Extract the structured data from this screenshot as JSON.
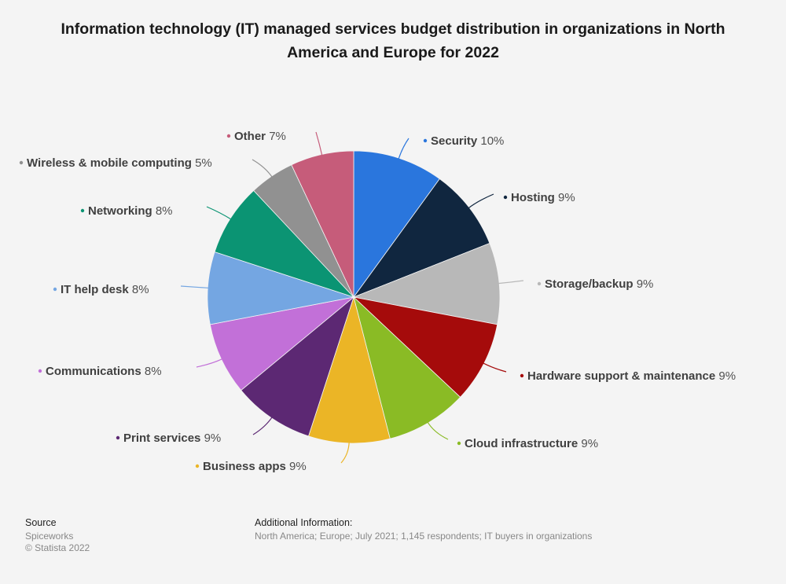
{
  "chart_data": {
    "type": "pie",
    "title": "Information technology (IT) managed services budget distribution in organizations in North America and Europe for 2022",
    "unit": "%",
    "slices": [
      {
        "label": "Security",
        "value": 10,
        "display": "10%",
        "color": "#2a76dd"
      },
      {
        "label": "Hosting",
        "value": 9,
        "display": "9%",
        "color": "#10263f"
      },
      {
        "label": "Storage/backup",
        "value": 9,
        "display": "9%",
        "color": "#b8b8b8"
      },
      {
        "label": "Hardware support & maintenance",
        "value": 9,
        "display": "9%",
        "color": "#a50b0b"
      },
      {
        "label": "Cloud infrastructure",
        "value": 9,
        "display": "9%",
        "color": "#8abb25"
      },
      {
        "label": "Business apps",
        "value": 9,
        "display": "9%",
        "color": "#ebb526"
      },
      {
        "label": "Print services",
        "value": 9,
        "display": "9%",
        "color": "#5c2873"
      },
      {
        "label": "Communications",
        "value": 8,
        "display": "8%",
        "color": "#c270d8"
      },
      {
        "label": "IT help desk",
        "value": 8,
        "display": "8%",
        "color": "#74a6e2"
      },
      {
        "label": "Networking",
        "value": 8,
        "display": "8%",
        "color": "#0b9473"
      },
      {
        "label": "Wireless & mobile computing",
        "value": 5,
        "display": "5%",
        "color": "#919191"
      },
      {
        "label": "Other",
        "value": 7,
        "display": "7%",
        "color": "#c65c7a"
      }
    ],
    "legend": "none (data labels around pie)"
  },
  "footer": {
    "source_heading": "Source",
    "source": "Spiceworks",
    "copyright": "© Statista 2022",
    "additional_heading": "Additional Information:",
    "additional": "North America; Europe; July 2021; 1,145 respondents; IT buyers in organizations"
  }
}
